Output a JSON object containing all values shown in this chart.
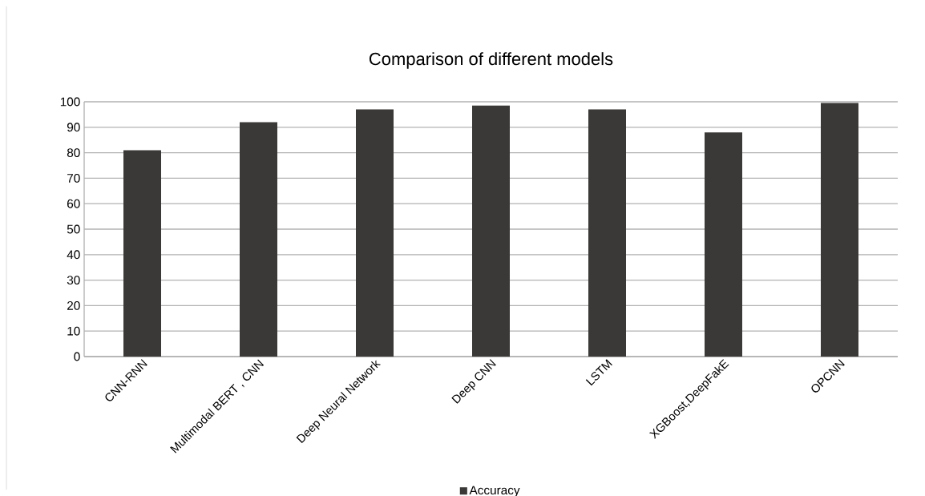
{
  "chart_data": {
    "type": "bar",
    "title": "Comparison of different models",
    "categories": [
      "CNN-RNN",
      "Multimodal BERT , CNN",
      "Deep Neural Network",
      "Deep CNN",
      "LSTM",
      "XGBoost,DeepFakE",
      "OPCNN"
    ],
    "series": [
      {
        "name": "Accuracy",
        "color": "#3a3937",
        "values": [
          81,
          92,
          97,
          98.5,
          97,
          88,
          99.5
        ]
      }
    ],
    "ylim": [
      0,
      100
    ],
    "yticks": [
      0,
      10,
      20,
      30,
      40,
      50,
      60,
      70,
      80,
      90,
      100
    ],
    "grid": "y",
    "legend": "bottom"
  }
}
